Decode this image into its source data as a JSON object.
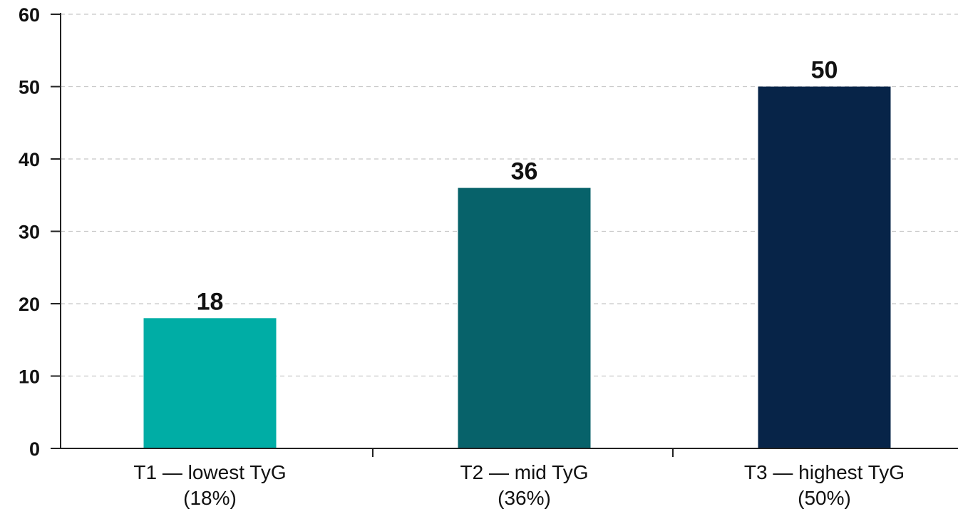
{
  "chart_data": {
    "type": "bar",
    "categories": [
      [
        "T1 — lowest TyG",
        "(18%)"
      ],
      [
        "T2 — mid TyG",
        "(36%)"
      ],
      [
        "T3 — highest TyG",
        "(50%)"
      ]
    ],
    "values": [
      18,
      36,
      50
    ],
    "data_labels": [
      "18",
      "36",
      "50"
    ],
    "colors": [
      "#00ada5",
      "#07626a",
      "#072448"
    ],
    "ylim": [
      0,
      60
    ],
    "yticks": [
      0,
      10,
      20,
      30,
      40,
      50,
      60
    ],
    "grid": true,
    "grid_style": "dashed",
    "legend": "none",
    "title": "",
    "xlabel": "",
    "ylabel": ""
  }
}
